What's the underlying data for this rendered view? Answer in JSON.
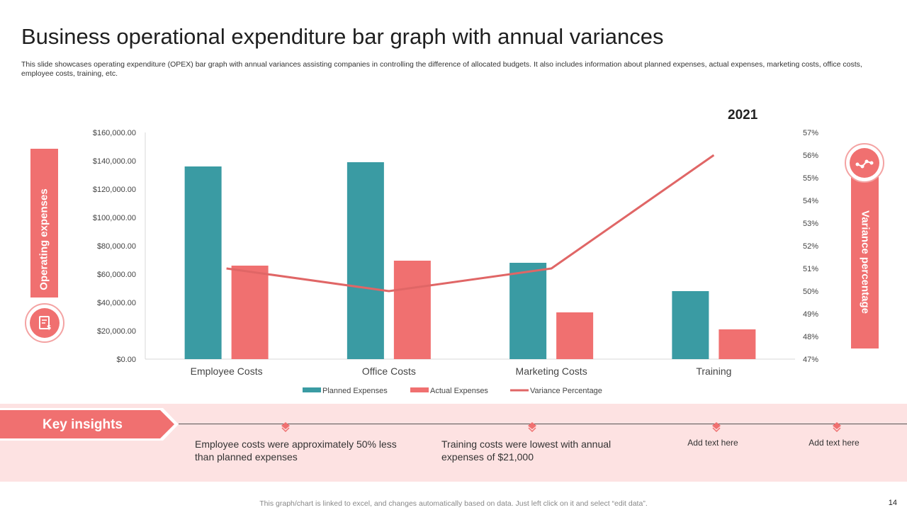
{
  "title": "Business operational expenditure bar graph with annual variances",
  "subtitle": "This slide showcases operating expenditure (OPEX) bar graph with annual variances assisting companies in controlling the difference of allocated budgets. It also includes information about planned expenses, actual expenses, marketing costs, office costs, employee costs, training, etc.",
  "left_band_label": "Operating expenses",
  "right_band_label": "Variance percentage",
  "icons": {
    "left": "expense-document-icon",
    "right": "line-chart-icon"
  },
  "colors": {
    "accent": "#f07070",
    "teal": "#3a9ba3",
    "pink_bg": "#fde2e2"
  },
  "chart_data": {
    "type": "bar",
    "title": "2021",
    "categories": [
      "Employee Costs",
      "Office Costs",
      "Marketing Costs",
      "Training"
    ],
    "series": [
      {
        "name": "Planned Expenses",
        "values": [
          136000,
          139000,
          68000,
          48000
        ],
        "color": "#3a9ba3"
      },
      {
        "name": "Actual Expenses",
        "values": [
          66000,
          69500,
          33000,
          21000
        ],
        "color": "#f07070"
      }
    ],
    "line_series": {
      "name": "Variance Percentage",
      "values": [
        51,
        50,
        51,
        56
      ],
      "color": "#e06666"
    },
    "y_left_ticks": [
      "$0.00",
      "$20,000.00",
      "$40,000.00",
      "$60,000.00",
      "$80,000.00",
      "$100,000.00",
      "$120,000.00",
      "$140,000.00",
      "$160,000.00"
    ],
    "y_right_ticks": [
      "47%",
      "48%",
      "49%",
      "50%",
      "51%",
      "52%",
      "53%",
      "54%",
      "55%",
      "56%",
      "57%"
    ],
    "ylim_left": [
      0,
      160000
    ],
    "ylim_right": [
      47,
      57
    ],
    "legend_position": "bottom"
  },
  "insights": {
    "heading": "Key insights",
    "items": [
      "Employee costs were approximately 50% less than planned expenses",
      "Training costs were lowest with annual expenses of $21,000",
      "Add text here",
      "Add text here"
    ]
  },
  "footer": "This graph/chart is linked to excel, and changes automatically based on data. Just left click on it and select “edit data”.",
  "page_number": "14"
}
